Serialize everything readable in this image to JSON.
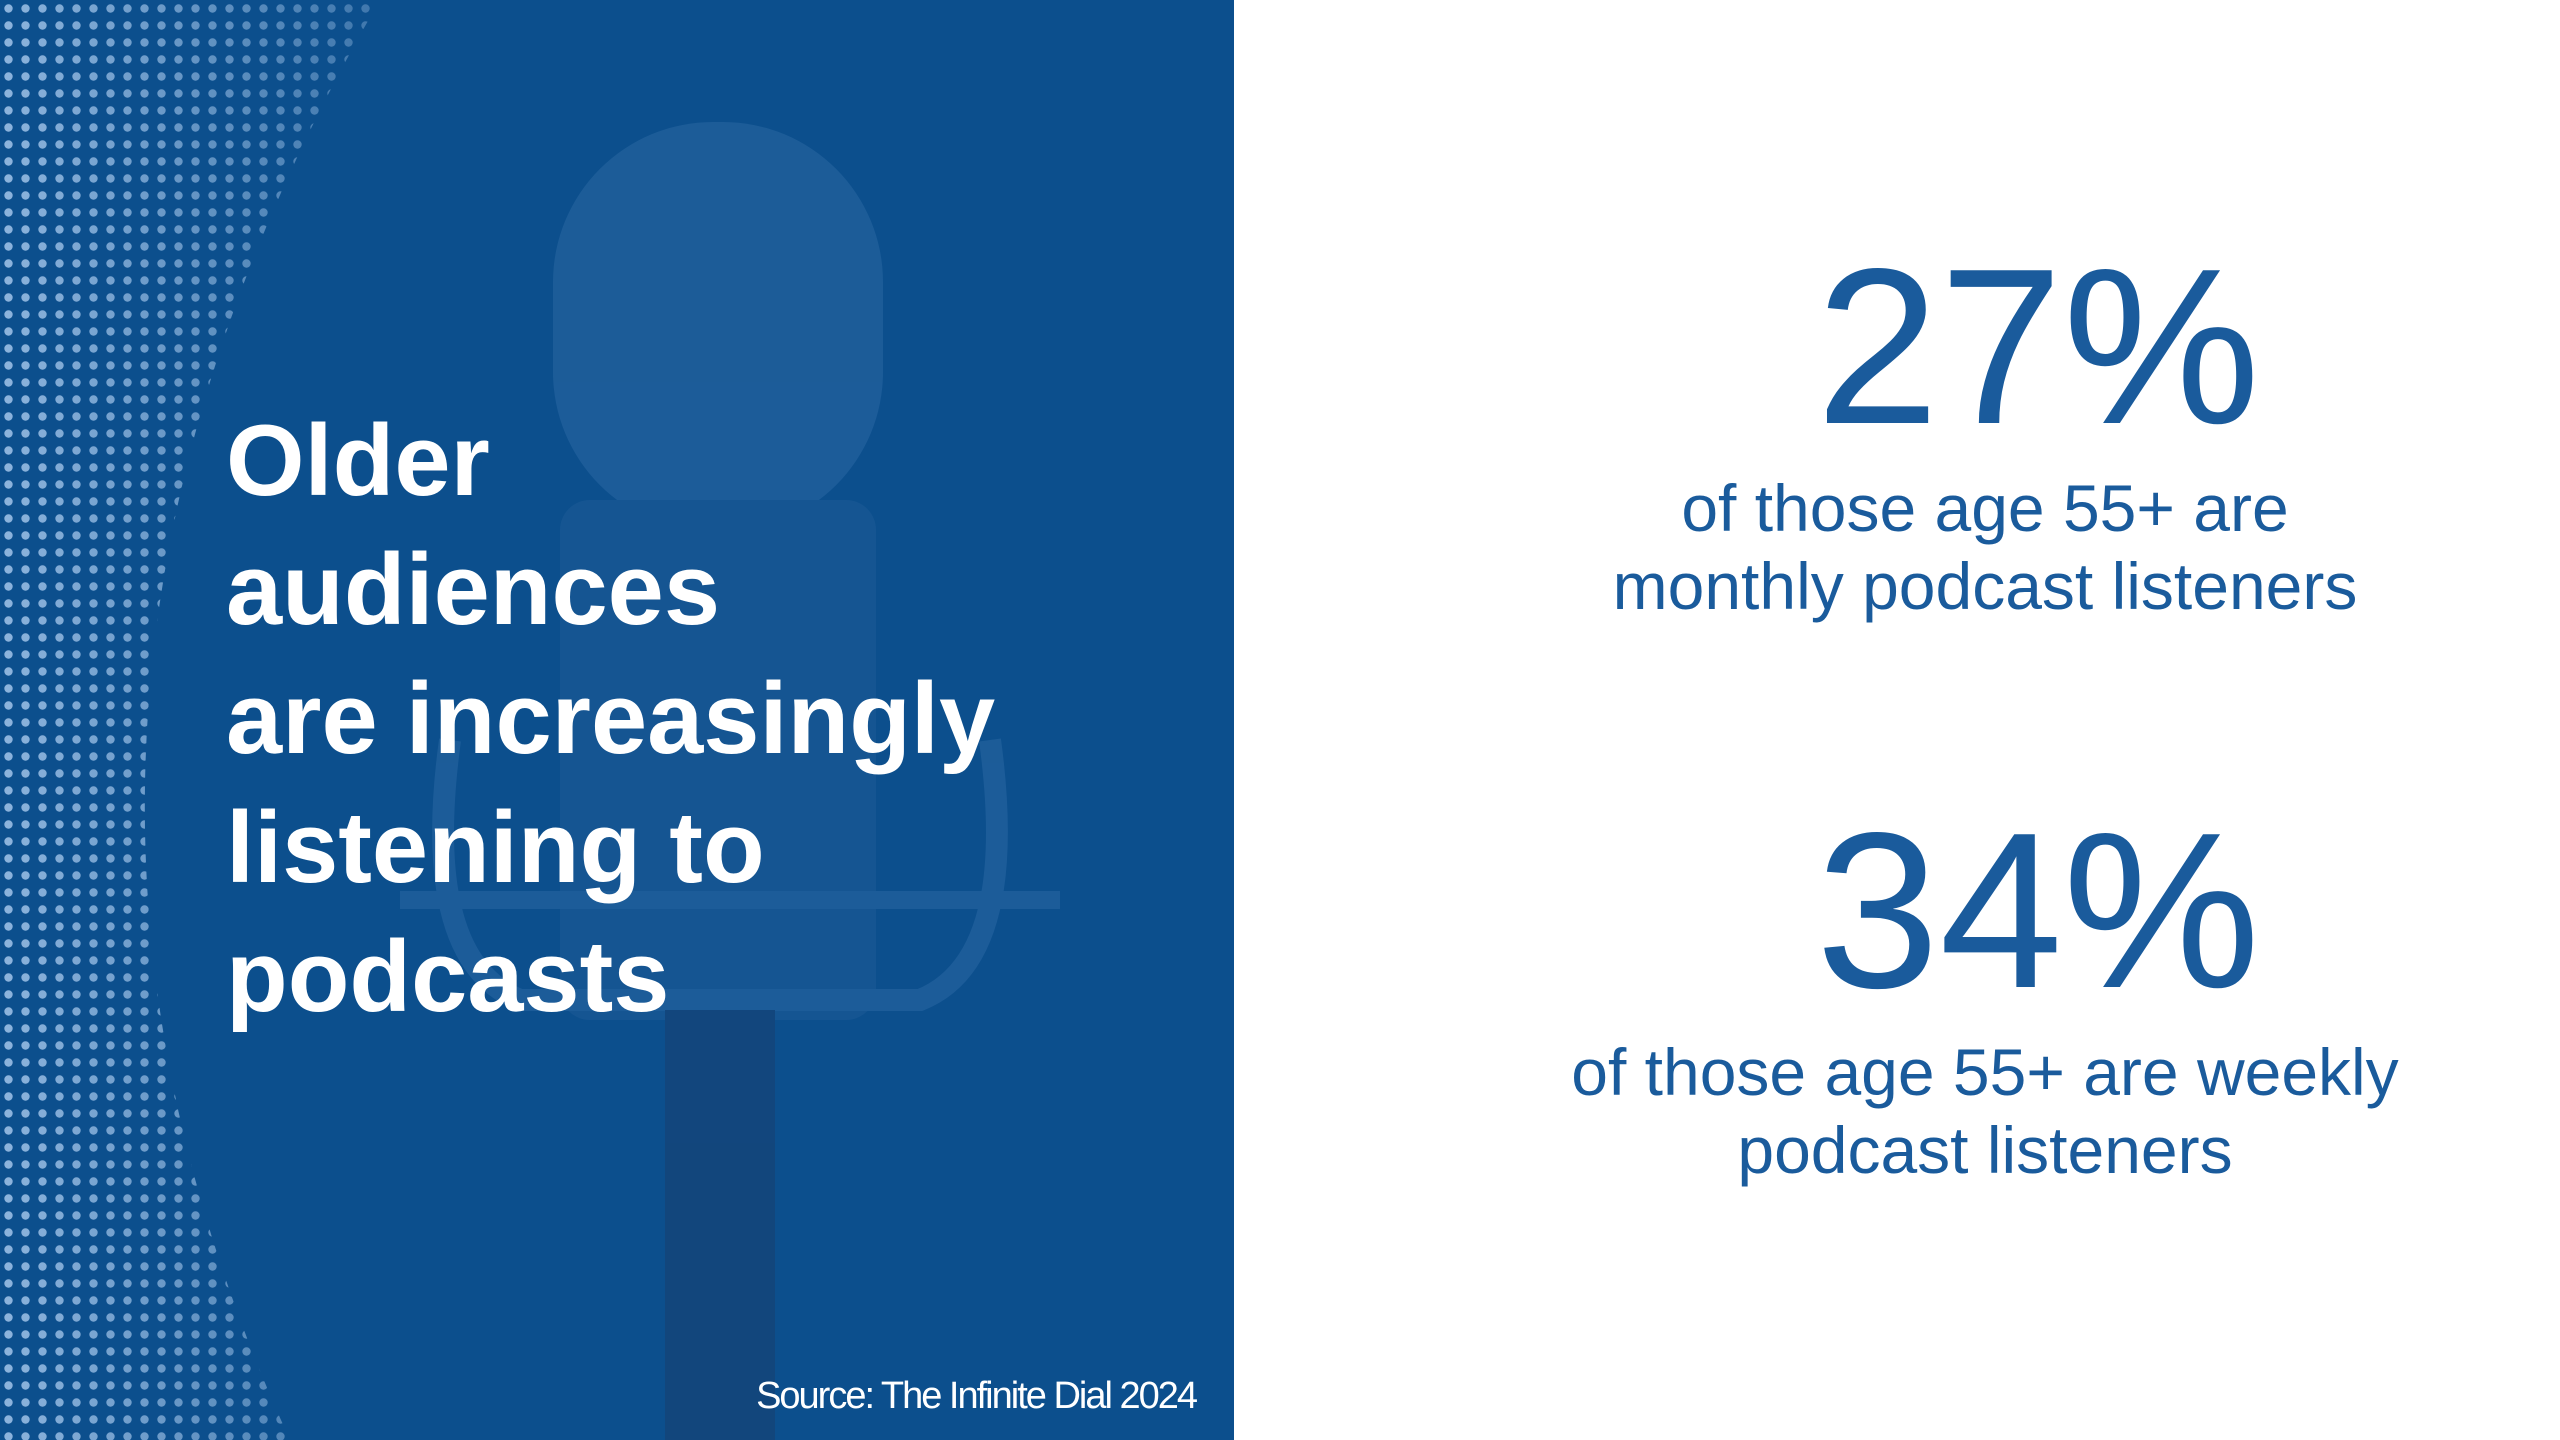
{
  "heading": {
    "lines": [
      "Older",
      "audiences",
      "are increasingly",
      "listening to",
      "podcasts"
    ]
  },
  "source": "Source: The Infinite Dial 2024",
  "stats": [
    {
      "value": "27%",
      "lines": [
        "of those age 55+ are",
        "monthly podcast listeners"
      ]
    },
    {
      "value": "34%",
      "lines": [
        "of those age 55+ are weekly",
        "podcast listeners"
      ]
    }
  ]
}
